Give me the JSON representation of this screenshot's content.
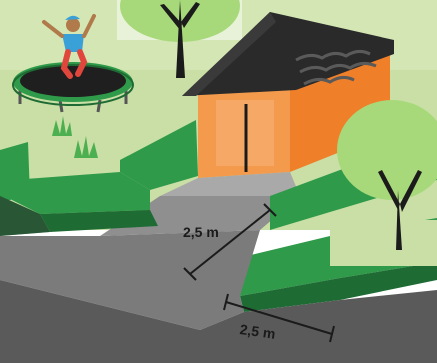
{
  "measurements": {
    "driveway_width": "2,5 m",
    "hedge_setback": "2,5 m"
  },
  "colors": {
    "lawn": "#c9dfa6",
    "lawn_light": "#d7e8b8",
    "hedge": "#2f9a4a",
    "hedge_dark": "#1f6b34",
    "garage_front": "#f39a4c",
    "garage_side": "#f07f2a",
    "roof": "#2a2a2a",
    "asphalt": "#5a5a5a",
    "sidewalk": "#7b7b7b",
    "driveway": "#a9a9a9",
    "tree_canopy": "#a7d97a",
    "trampoline_mat": "#1f1f1f",
    "trampoline_rim": "#2f9a4a"
  },
  "icons": [
    "trampoline-icon",
    "jumping-child-icon",
    "garage-icon",
    "tree-icon",
    "grass-tuft-icon",
    "hedge-icon"
  ]
}
